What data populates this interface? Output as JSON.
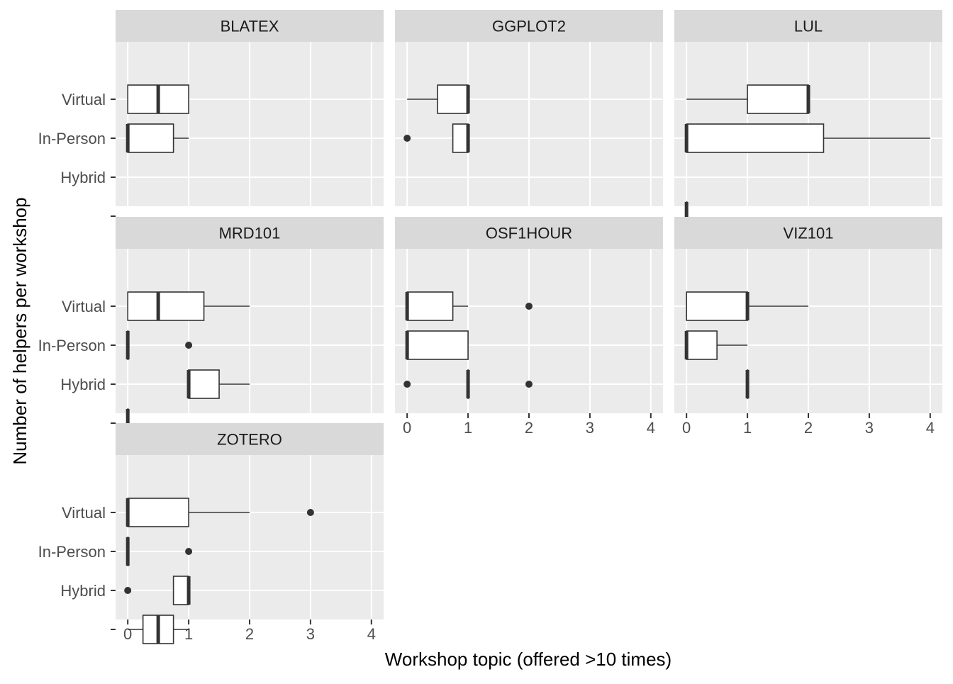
{
  "chart_data": {
    "type": "boxplot",
    "facet": "faceted (wrap, 3 columns)",
    "orientation": "horizontal",
    "xlabel": "Workshop topic (offered >10 times)",
    "ylabel": "Number of helpers per workshop",
    "xlim": [
      -0.2,
      4.2
    ],
    "xticks": [
      0,
      1,
      2,
      3,
      4
    ],
    "categories": [
      "Virtual",
      "In-Person",
      "Hybrid",
      ""
    ],
    "grid": true,
    "legend": "none",
    "colors": {
      "panel_bg": "#ebebeb",
      "strip_bg": "#d9d9d9",
      "gridline": "#ffffff",
      "box_fill": "#ffffff",
      "box_stroke": "#333333",
      "axis_text": "#4d4d4d",
      "title_text": "#000000"
    },
    "panels": [
      {
        "title": "BLATEX",
        "boxes": [
          {
            "category": "Virtual",
            "min": 0,
            "q1": 0,
            "median": 0.5,
            "q3": 1,
            "max": 1,
            "outliers": []
          },
          {
            "category": "In-Person",
            "min": 0,
            "q1": 0,
            "median": 0,
            "q3": 0.75,
            "max": 1,
            "outliers": []
          }
        ]
      },
      {
        "title": "GGPLOT2",
        "boxes": [
          {
            "category": "Virtual",
            "min": 0,
            "q1": 0.5,
            "median": 1,
            "q3": 1,
            "max": 1,
            "outliers": []
          },
          {
            "category": "In-Person",
            "min": 0.75,
            "q1": 0.75,
            "median": 1,
            "q3": 1,
            "max": 1,
            "outliers": [
              0
            ]
          }
        ]
      },
      {
        "title": "LUL",
        "boxes": [
          {
            "category": "Virtual",
            "min": 0,
            "q1": 1,
            "median": 2,
            "q3": 2,
            "max": 2,
            "outliers": []
          },
          {
            "category": "In-Person",
            "min": 0,
            "q1": 0,
            "median": 0,
            "q3": 2.25,
            "max": 4,
            "outliers": []
          },
          {
            "category": "",
            "min": 0,
            "q1": 0,
            "median": 0,
            "q3": 0,
            "max": 0,
            "outliers": []
          }
        ]
      },
      {
        "title": "MRD101",
        "boxes": [
          {
            "category": "Virtual",
            "min": 0,
            "q1": 0,
            "median": 0.5,
            "q3": 1.25,
            "max": 2,
            "outliers": []
          },
          {
            "category": "In-Person",
            "min": 0,
            "q1": 0,
            "median": 0,
            "q3": 0,
            "max": 0,
            "outliers": [
              1
            ]
          },
          {
            "category": "Hybrid",
            "min": 1,
            "q1": 1,
            "median": 1,
            "q3": 1.5,
            "max": 2,
            "outliers": []
          },
          {
            "category": "",
            "min": 0,
            "q1": 0,
            "median": 0,
            "q3": 0,
            "max": 0,
            "outliers": []
          }
        ]
      },
      {
        "title": "OSF1HOUR",
        "boxes": [
          {
            "category": "Virtual",
            "min": 0,
            "q1": 0,
            "median": 0,
            "q3": 0.75,
            "max": 1,
            "outliers": [
              2
            ]
          },
          {
            "category": "In-Person",
            "min": 0,
            "q1": 0,
            "median": 0,
            "q3": 1,
            "max": 1,
            "outliers": []
          },
          {
            "category": "Hybrid",
            "min": 1,
            "q1": 1,
            "median": 1,
            "q3": 1,
            "max": 1,
            "outliers": [
              0,
              2
            ]
          }
        ]
      },
      {
        "title": "VIZ101",
        "boxes": [
          {
            "category": "Virtual",
            "min": 0,
            "q1": 0,
            "median": 1,
            "q3": 1,
            "max": 2,
            "outliers": []
          },
          {
            "category": "In-Person",
            "min": 0,
            "q1": 0,
            "median": 0,
            "q3": 0.5,
            "max": 1,
            "outliers": []
          },
          {
            "category": "Hybrid",
            "min": 1,
            "q1": 1,
            "median": 1,
            "q3": 1,
            "max": 1,
            "outliers": []
          }
        ]
      },
      {
        "title": "ZOTERO",
        "boxes": [
          {
            "category": "Virtual",
            "min": 0,
            "q1": 0,
            "median": 0,
            "q3": 1,
            "max": 2,
            "outliers": [
              3
            ]
          },
          {
            "category": "In-Person",
            "min": 0,
            "q1": 0,
            "median": 0,
            "q3": 0,
            "max": 0,
            "outliers": [
              1
            ]
          },
          {
            "category": "Hybrid",
            "min": 0.75,
            "q1": 0.75,
            "median": 1,
            "q3": 1,
            "max": 1,
            "outliers": [
              0
            ]
          },
          {
            "category": "",
            "min": 0,
            "q1": 0.25,
            "median": 0.5,
            "q3": 0.75,
            "max": 1,
            "outliers": []
          }
        ]
      }
    ]
  }
}
